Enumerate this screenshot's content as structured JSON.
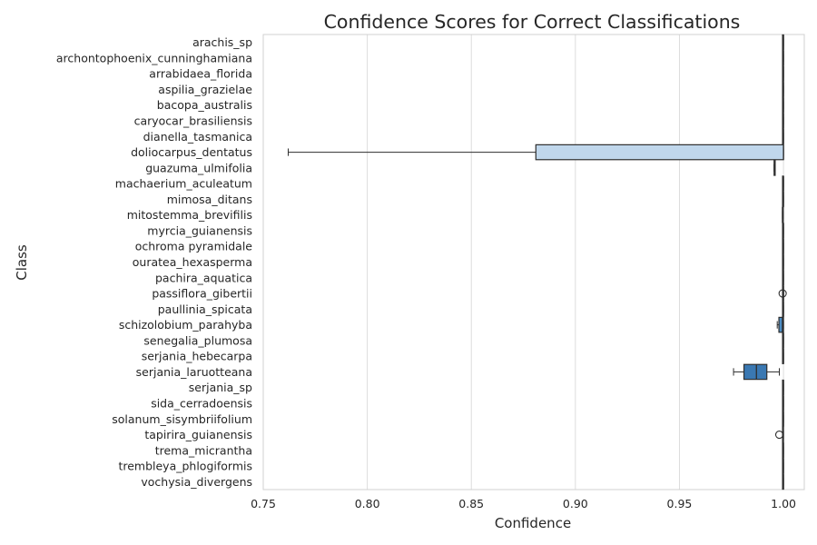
{
  "chart_data": {
    "type": "boxplot",
    "title": "Confidence Scores for Correct Classifications",
    "xlabel": "Confidence",
    "ylabel": "Class",
    "xlim": [
      0.75,
      1.01
    ],
    "xticks": [
      "0.75",
      "0.80",
      "0.85",
      "0.90",
      "0.95",
      "1.00"
    ],
    "grid": "vertical",
    "categories": [
      "arachis_sp",
      "archontophoenix_cunninghamiana",
      "arrabidaea_florida",
      "aspilia_grazielae",
      "bacopa_australis",
      "caryocar_brasiliensis",
      "dianella_tasmanica",
      "doliocarpus_dentatus",
      "guazuma_ulmifolia",
      "machaerium_aculeatum",
      "mimosa_ditans",
      "mitostemma_brevifilis",
      "myrcia_guianensis",
      "ochroma pyramidale",
      "ouratea_hexasperma",
      "pachira_aquatica",
      "passiflora_gibertii",
      "paullinia_spicata",
      "schizolobium_parahyba",
      "senegalia_plumosa",
      "serjania_hebecarpa",
      "serjania_laruotteana",
      "serjania_sp",
      "sida_cerradoensis",
      "solanum_sisymbriifolium",
      "tapirira_guianensis",
      "trema_micrantha",
      "trembleya_phlogiformis",
      "vochysia_divergens"
    ],
    "boxes": [
      {
        "min": 0.9999,
        "q1": 0.9999,
        "median": 1.0,
        "q3": 1.0,
        "max": 1.0,
        "outliers": []
      },
      {
        "min": 0.9999,
        "q1": 0.9999,
        "median": 1.0,
        "q3": 1.0,
        "max": 1.0,
        "outliers": []
      },
      {
        "min": 0.9999,
        "q1": 0.9999,
        "median": 1.0,
        "q3": 1.0,
        "max": 1.0,
        "outliers": []
      },
      {
        "min": 0.9999,
        "q1": 0.9999,
        "median": 1.0,
        "q3": 1.0,
        "max": 1.0,
        "outliers": []
      },
      {
        "min": 0.9999,
        "q1": 0.9999,
        "median": 1.0,
        "q3": 1.0,
        "max": 1.0,
        "outliers": []
      },
      {
        "min": 0.9999,
        "q1": 0.9999,
        "median": 1.0,
        "q3": 1.0,
        "max": 1.0,
        "outliers": []
      },
      {
        "min": 0.9999,
        "q1": 0.9999,
        "median": 1.0,
        "q3": 1.0,
        "max": 1.0,
        "outliers": []
      },
      {
        "min": 0.762,
        "q1": 0.881,
        "median": 1.0,
        "q3": 1.0,
        "max": 1.0,
        "outliers": []
      },
      {
        "min": 0.9955,
        "q1": 0.9955,
        "median": 0.9957,
        "q3": 0.996,
        "max": 0.996,
        "outliers": []
      },
      {
        "min": 0.9999,
        "q1": 0.9999,
        "median": 1.0,
        "q3": 1.0,
        "max": 1.0,
        "outliers": []
      },
      {
        "min": 0.9999,
        "q1": 0.9999,
        "median": 1.0,
        "q3": 1.0,
        "max": 1.0,
        "outliers": []
      },
      {
        "min": 0.9995,
        "q1": 0.9995,
        "median": 0.9997,
        "q3": 0.9999,
        "max": 0.9999,
        "outliers": []
      },
      {
        "min": 0.9999,
        "q1": 0.9999,
        "median": 1.0,
        "q3": 1.0,
        "max": 1.0,
        "outliers": []
      },
      {
        "min": 0.9999,
        "q1": 0.9999,
        "median": 1.0,
        "q3": 1.0,
        "max": 1.0,
        "outliers": []
      },
      {
        "min": 0.9999,
        "q1": 0.9999,
        "median": 1.0,
        "q3": 1.0,
        "max": 1.0,
        "outliers": []
      },
      {
        "min": 0.9999,
        "q1": 0.9999,
        "median": 1.0,
        "q3": 1.0,
        "max": 1.0,
        "outliers": []
      },
      {
        "min": 1.0,
        "q1": 1.0,
        "median": 1.0,
        "q3": 1.0,
        "max": 1.0,
        "outliers": [
          0.9996
        ]
      },
      {
        "min": 0.9999,
        "q1": 0.9999,
        "median": 1.0,
        "q3": 1.0,
        "max": 1.0,
        "outliers": []
      },
      {
        "min": 0.997,
        "q1": 0.9978,
        "median": 0.9995,
        "q3": 1.0,
        "max": 1.0,
        "outliers": []
      },
      {
        "min": 0.9999,
        "q1": 0.9999,
        "median": 1.0,
        "q3": 1.0,
        "max": 1.0,
        "outliers": []
      },
      {
        "min": 0.9999,
        "q1": 0.9999,
        "median": 1.0,
        "q3": 1.0,
        "max": 1.0,
        "outliers": []
      },
      {
        "min": 0.976,
        "q1": 0.981,
        "median": 0.987,
        "q3": 0.992,
        "max": 0.998,
        "outliers": []
      },
      {
        "min": 0.9999,
        "q1": 0.9999,
        "median": 1.0,
        "q3": 1.0,
        "max": 1.0,
        "outliers": []
      },
      {
        "min": 0.9999,
        "q1": 0.9999,
        "median": 1.0,
        "q3": 1.0,
        "max": 1.0,
        "outliers": []
      },
      {
        "min": 0.9999,
        "q1": 0.9999,
        "median": 1.0,
        "q3": 1.0,
        "max": 1.0,
        "outliers": []
      },
      {
        "min": 0.9997,
        "q1": 0.9998,
        "median": 0.9999,
        "q3": 1.0,
        "max": 1.0,
        "outliers": [
          0.998
        ]
      },
      {
        "min": 0.9999,
        "q1": 0.9999,
        "median": 1.0,
        "q3": 1.0,
        "max": 1.0,
        "outliers": []
      },
      {
        "min": 0.9999,
        "q1": 0.9999,
        "median": 1.0,
        "q3": 1.0,
        "max": 1.0,
        "outliers": []
      },
      {
        "min": 0.9999,
        "q1": 0.9999,
        "median": 1.0,
        "q3": 1.0,
        "max": 1.0,
        "outliers": []
      }
    ],
    "colors": {
      "light_box": "#c0d7ec",
      "mid_box": "#4d8dc4",
      "dark_box": "#3a78b2",
      "line": "#2e2e2e",
      "grid": "#dcdcdc",
      "axis": "#d0d0d0",
      "text": "#262626"
    },
    "box_colors": [
      "light_box",
      "light_box",
      "light_box",
      "light_box",
      "light_box",
      "light_box",
      "light_box",
      "light_box",
      "light_box",
      "light_box",
      "light_box",
      "light_box",
      "light_box",
      "light_box",
      "light_box",
      "light_box",
      "light_box",
      "light_box",
      "mid_box",
      "light_box",
      "light_box",
      "dark_box",
      "light_box",
      "light_box",
      "light_box",
      "light_box",
      "light_box",
      "light_box",
      "light_box"
    ]
  }
}
